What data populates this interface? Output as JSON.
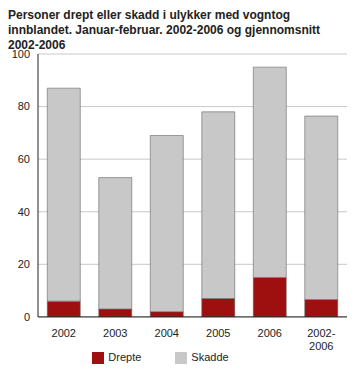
{
  "chart_data": {
    "type": "bar",
    "title": "Personer drept eller skadd i ulykker med vogntog innblandet. Januar-februar. 2002-2006 og gjennomsnitt 2002-2006",
    "categories": [
      "2002",
      "2003",
      "2004",
      "2005",
      "2006",
      "2002-2006"
    ],
    "series": [
      {
        "name": "Drepte",
        "color": "#9e0f0f",
        "values": [
          6,
          3,
          2,
          7,
          15,
          6.6
        ]
      },
      {
        "name": "Skadde",
        "color": "#c8c8c8",
        "values": [
          81,
          50,
          67,
          71,
          80,
          69.8
        ]
      }
    ],
    "stacked": true,
    "ylim": [
      0,
      100
    ],
    "yticks": [
      0,
      20,
      40,
      60,
      80,
      100
    ],
    "grid": true,
    "legend": "bottom"
  }
}
